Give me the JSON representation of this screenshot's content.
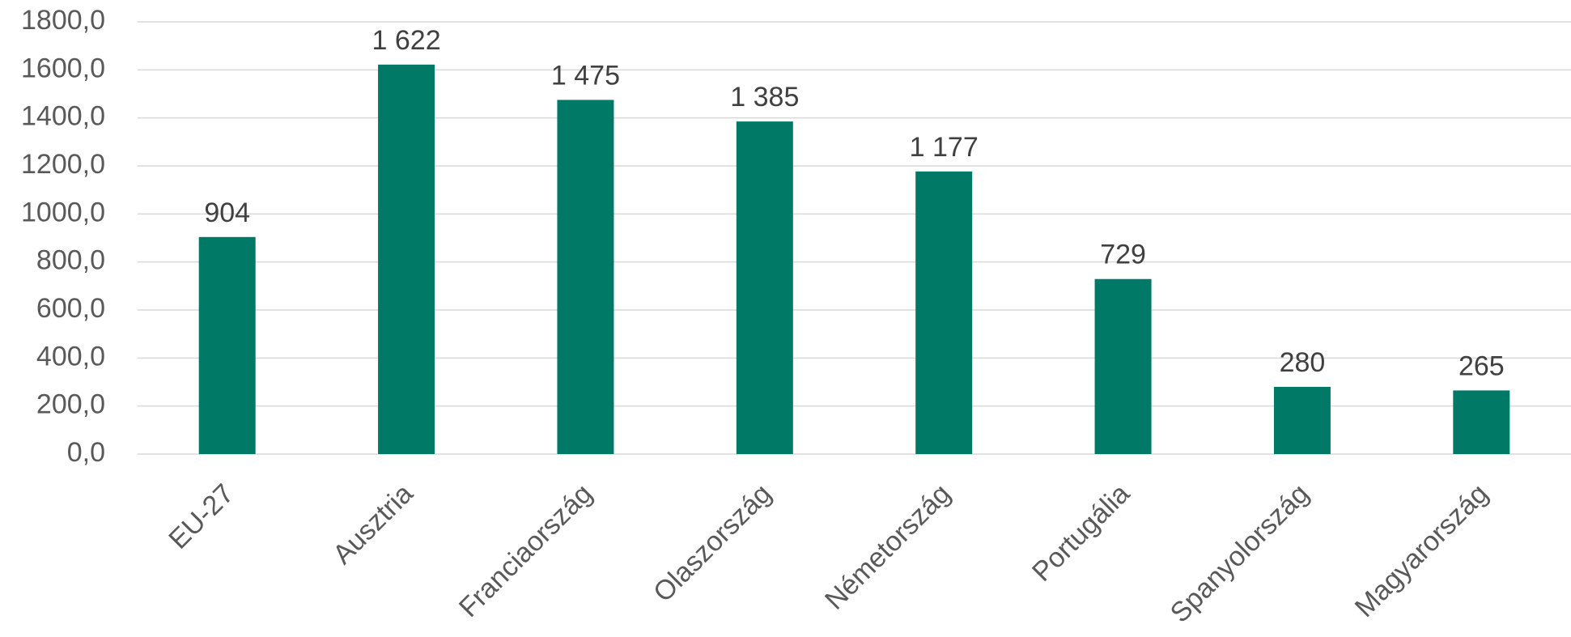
{
  "chart_data": {
    "type": "bar",
    "categories": [
      "EU-27",
      "Ausztria",
      "Franciaország",
      "Olaszország",
      "Németország",
      "Portugália",
      "Spanyolország",
      "Magyarország"
    ],
    "values": [
      904,
      1622,
      1475,
      1385,
      1177,
      729,
      280,
      265
    ],
    "data_labels": [
      "904",
      "1 622",
      "1 475",
      "1 385",
      "1 177",
      "729",
      "280",
      "265"
    ],
    "ylim": [
      0,
      1800
    ],
    "yticks": [
      0,
      200,
      400,
      600,
      800,
      1000,
      1200,
      1400,
      1600,
      1800
    ],
    "ytick_labels": [
      "0,0",
      "200,0",
      "400,0",
      "600,0",
      "800,0",
      "1000,0",
      "1200,0",
      "1400,0",
      "1600,0",
      "1800,0"
    ],
    "title": "",
    "xlabel": "",
    "ylabel": "",
    "grid": true,
    "bar_color": "#007A66",
    "grid_color": "#D9D9D9"
  }
}
